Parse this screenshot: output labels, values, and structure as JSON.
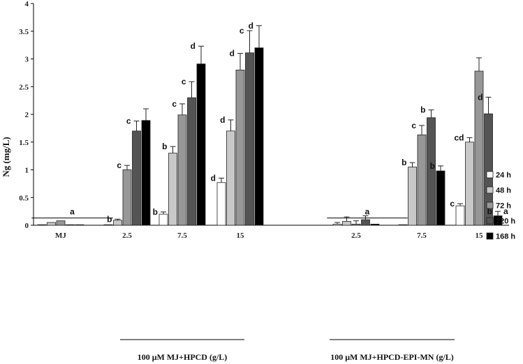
{
  "chart_data": {
    "type": "bar",
    "ylabel": "Ng (mg/L)",
    "ylim": [
      0,
      4
    ],
    "yticks": [
      "0",
      "0.5",
      "1",
      "1.5",
      "2",
      "2.5",
      "3",
      "3.5",
      "4"
    ],
    "grid": false,
    "legend_position": "right",
    "categories": [
      "MJ",
      "2.5",
      "7.5",
      "15",
      "2.5",
      "7.5",
      "15"
    ],
    "group_labels": [
      {
        "label": "100 μM MJ+HPCD (g/L)",
        "categories": [
          1,
          2,
          3
        ]
      },
      {
        "label": "100 μM MJ+HPCD-EPI-MN  (g/L)",
        "categories": [
          4,
          5,
          6
        ]
      }
    ],
    "series": [
      {
        "name": "24 h",
        "color": "#ffffff",
        "values": [
          0.01,
          0.01,
          0.2,
          0.77,
          0.02,
          0.01,
          0.35
        ],
        "errors": [
          0,
          0,
          0.04,
          0.08,
          0.03,
          0,
          0.04
        ]
      },
      {
        "name": "48 h",
        "color": "#c8c8c8",
        "values": [
          0.05,
          0.09,
          1.3,
          1.7,
          0.07,
          1.05,
          1.5
        ],
        "errors": [
          0,
          0.02,
          0.12,
          0.2,
          0.08,
          0.08,
          0.08
        ]
      },
      {
        "name": "72 h",
        "color": "#979797",
        "values": [
          0.08,
          1.0,
          1.99,
          2.8,
          0.02,
          1.63,
          2.78
        ],
        "errors": [
          0,
          0.08,
          0.2,
          0.3,
          0.06,
          0.17,
          0.24
        ]
      },
      {
        "name": "120 h",
        "color": "#545454",
        "values": [
          0.01,
          1.7,
          2.3,
          3.11,
          0.1,
          1.94,
          2.01
        ],
        "errors": [
          0,
          0.18,
          0.29,
          0.4,
          0.07,
          0.14,
          0.3
        ]
      },
      {
        "name": "168 h",
        "color": "#000000",
        "values": [
          0.01,
          1.89,
          2.91,
          3.2,
          0.02,
          0.98,
          0.17
        ],
        "errors": [
          0,
          0.21,
          0.32,
          0.4,
          0,
          0.09,
          0.08
        ]
      }
    ],
    "significance_letters": [
      [
        null,
        null,
        "b",
        "d",
        null,
        null,
        "c"
      ],
      [
        null,
        "b",
        "b",
        "d",
        null,
        "b",
        "cd"
      ],
      [
        null,
        "c",
        "c",
        "d",
        null,
        "c",
        null
      ],
      [
        null,
        "c",
        "c",
        "c",
        null,
        "b",
        "d"
      ],
      [
        null,
        null,
        "d",
        "d",
        null,
        "b",
        "b"
      ]
    ],
    "annotations": [
      {
        "text": "a",
        "over_categories": [
          0,
          1
        ]
      },
      {
        "text": "a",
        "over_categories": [
          4,
          5
        ]
      },
      {
        "text": "a",
        "category": 6,
        "series": 4
      }
    ]
  }
}
